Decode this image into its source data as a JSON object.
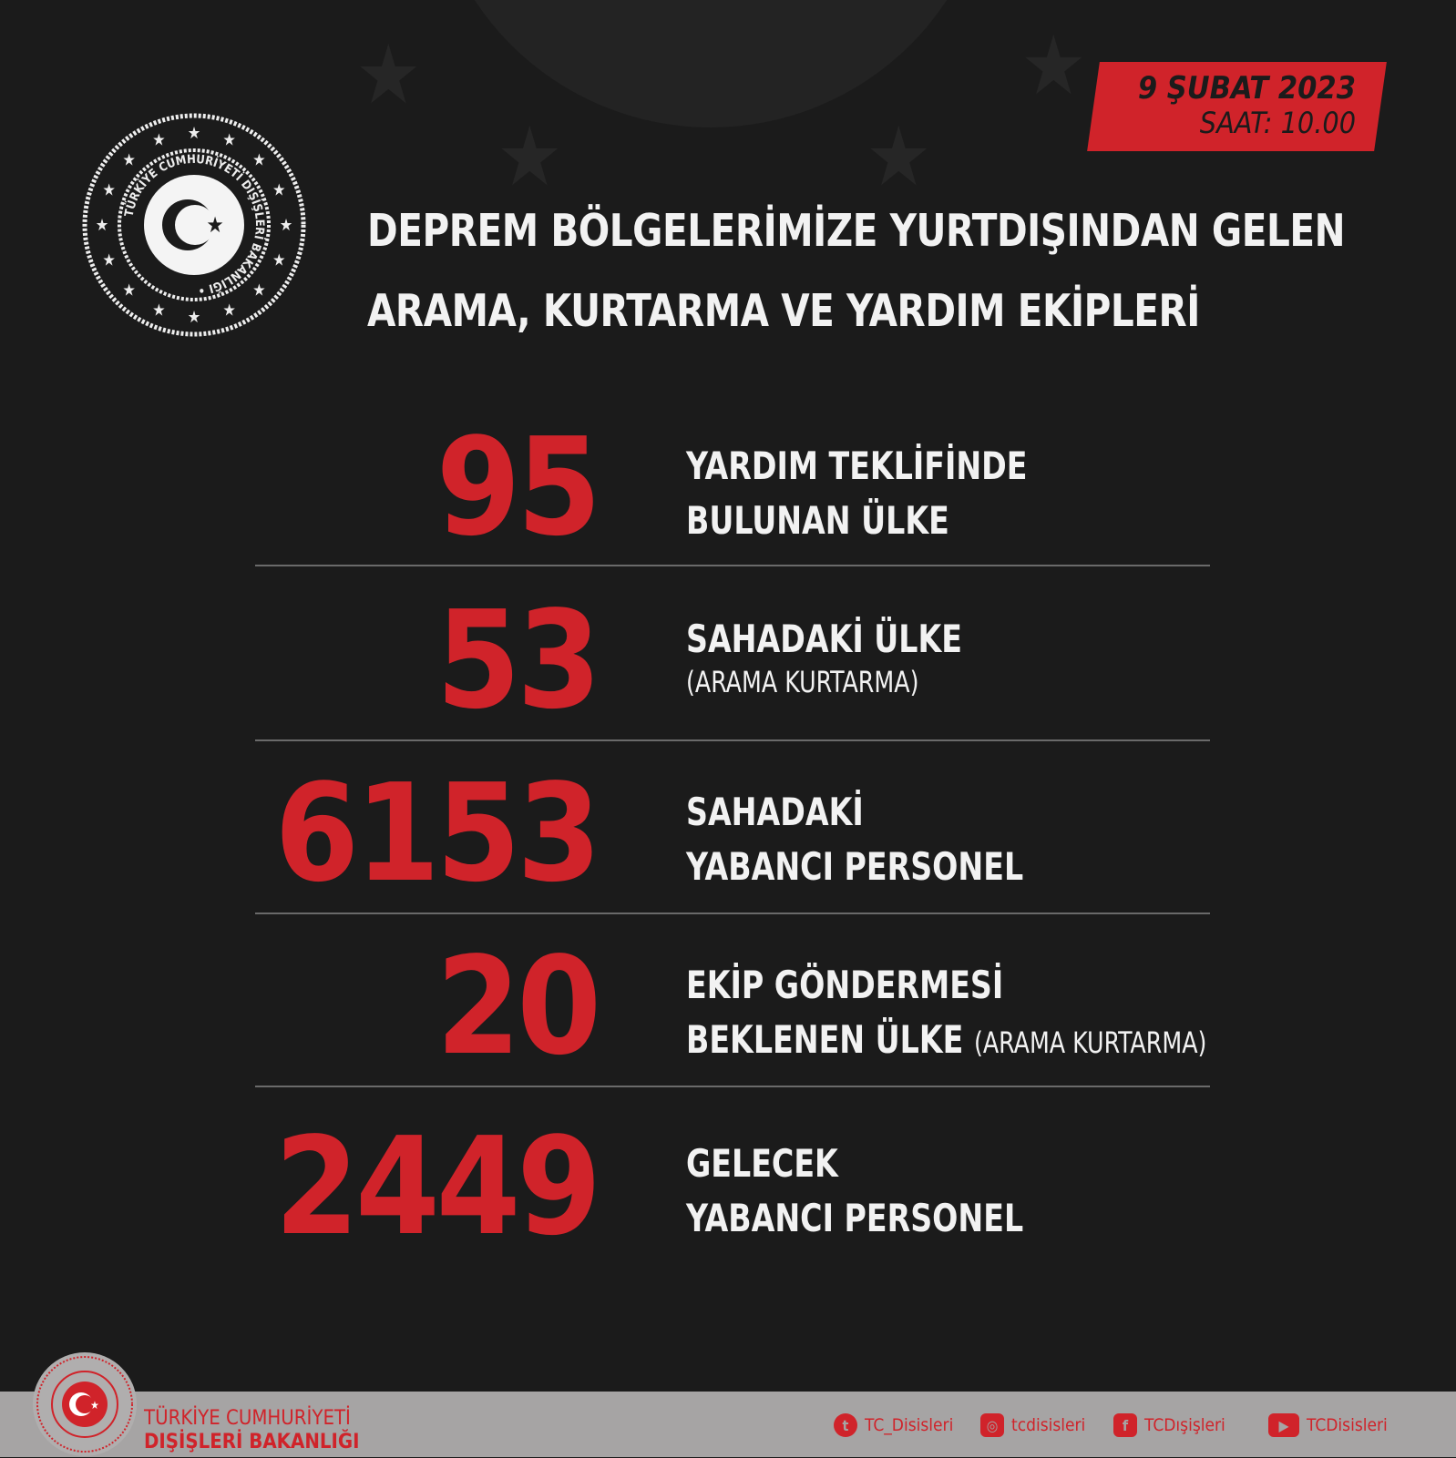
{
  "date": {
    "day": "9 ŞUBAT 2023",
    "time": "SAAT: 10.00"
  },
  "logo_text": "TÜRKİYE CUMHURİYETİ DIŞİŞLERİ BAKANLIĞI",
  "title": {
    "line1": "DEPREM BÖLGELERİMİZE YURTDIŞINDAN GELEN",
    "line2": "ARAMA, KURTARMA VE YARDIM EKİPLERİ"
  },
  "stats": [
    {
      "value": "95",
      "line1": "YARDIM TEKLİFİNDE",
      "line2": "BULUNAN ÜLKE",
      "note": ""
    },
    {
      "value": "53",
      "line1": "SAHADAKİ ÜLKE",
      "line2": "",
      "note": "(ARAMA KURTARMA)"
    },
    {
      "value": "6153",
      "line1": "SAHADAKİ",
      "line2": "YABANCI PERSONEL",
      "note": ""
    },
    {
      "value": "20",
      "line1": "EKİP GÖNDERMESİ",
      "line2": "BEKLENEN ÜLKE",
      "note": "(ARAMA KURTARMA)"
    },
    {
      "value": "2449",
      "line1": "GELECEK",
      "line2": "YABANCI PERSONEL",
      "note": ""
    }
  ],
  "footer": {
    "org_line1": "TÜRKİYE CUMHURİYETİ",
    "org_line2": "DIŞİŞLERİ BAKANLIĞI",
    "social": [
      {
        "icon": "twitter-icon",
        "handle": "TC_Disisleri"
      },
      {
        "icon": "instagram-icon",
        "handle": "tcdisisleri"
      },
      {
        "icon": "facebook-icon",
        "handle": "TCDışişleri"
      },
      {
        "icon": "youtube-icon",
        "handle": "TCDisisleri"
      }
    ]
  },
  "colors": {
    "accent": "#d0232a",
    "background": "#1b1b1b",
    "footer": "#a6a4a4"
  }
}
